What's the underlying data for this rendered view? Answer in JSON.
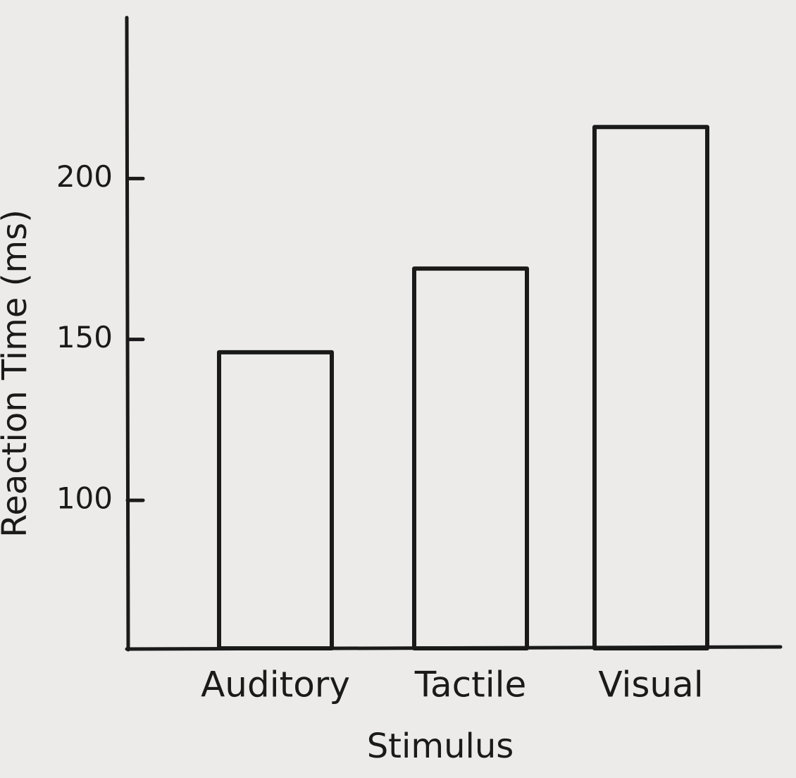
{
  "chart_data": {
    "type": "bar",
    "x_label": "Stimulus",
    "y_label": "Reaction Time (ms)",
    "categories": [
      "Auditory",
      "Tactile",
      "Visual"
    ],
    "values": [
      146,
      172,
      216
    ],
    "color": "none",
    "stroke": "#1a1a1a",
    "ylim": [
      54,
      250
    ],
    "yticks": [
      100,
      150,
      200
    ],
    "grid": false
  }
}
